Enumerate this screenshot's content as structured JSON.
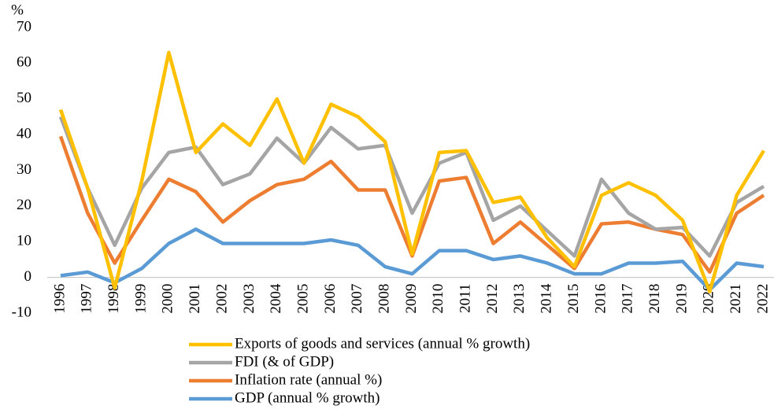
{
  "chart_data": {
    "type": "line",
    "y_label": "%",
    "categories": [
      "1996",
      "1997",
      "1998",
      "1999",
      "2000",
      "2001",
      "2002",
      "2003",
      "2004",
      "2005",
      "2006",
      "2007",
      "2008",
      "2009",
      "2010",
      "2011",
      "2012",
      "2013",
      "2014",
      "2015",
      "2016",
      "2017",
      "2018",
      "2019",
      "2020",
      "2021",
      "2022"
    ],
    "series": [
      {
        "name": "Exports of goods and services (annual % growth)",
        "color": "#FFC000",
        "values": [
          47,
          25,
          -3,
          27,
          63,
          35,
          43,
          37,
          50,
          32,
          48.5,
          45,
          38,
          6.5,
          35,
          35.5,
          21,
          22.5,
          11,
          3,
          23,
          26.5,
          23,
          16,
          -4,
          23,
          35.5
        ]
      },
      {
        "name": "FDI (& of GDP)",
        "color": "#A5A5A5",
        "values": [
          45,
          25,
          9,
          25,
          35,
          36.5,
          26,
          29,
          39,
          32,
          42,
          36,
          37,
          18,
          32,
          35,
          16,
          20,
          13,
          6,
          27.5,
          18,
          13.5,
          14,
          6,
          21,
          25.5
        ]
      },
      {
        "name": "Inflation rate (annual %)",
        "color": "#ED7D31",
        "values": [
          39.5,
          18,
          4,
          16,
          27.5,
          24,
          15.5,
          21.5,
          26,
          27.5,
          32.5,
          24.5,
          24.5,
          6,
          27,
          28,
          9.5,
          15.5,
          9,
          2.5,
          15,
          15.5,
          13.5,
          12,
          1.5,
          18,
          23
        ]
      },
      {
        "name": "GDP (annual % growth)",
        "color": "#5B9BD5",
        "values": [
          0.5,
          1.5,
          -1.5,
          2.5,
          9.5,
          13.5,
          9.5,
          9.5,
          9.5,
          9.5,
          10.5,
          9,
          3,
          1,
          7.5,
          7.5,
          5,
          6,
          4,
          1,
          1,
          4,
          4,
          4.5,
          -3.5,
          4,
          3
        ]
      }
    ],
    "ylim": [
      -10,
      70
    ],
    "yticks": [
      -10,
      0,
      10,
      20,
      30,
      40,
      50,
      60,
      70
    ],
    "grid": false,
    "legend": "bottom"
  }
}
